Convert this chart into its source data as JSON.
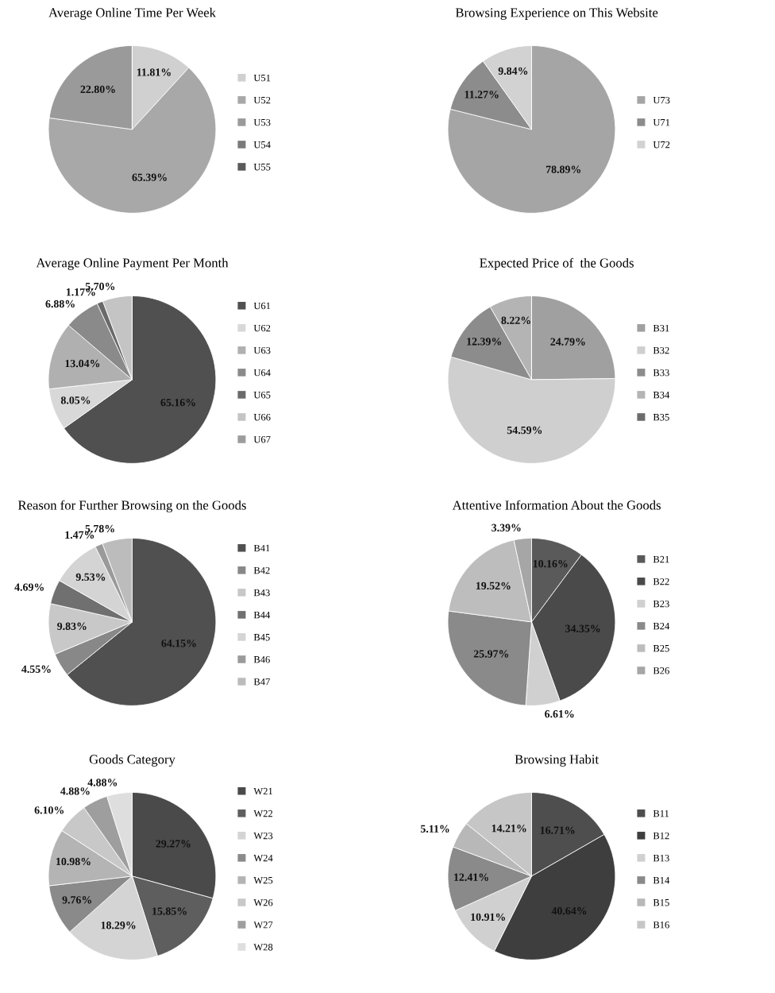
{
  "chart_data": [
    {
      "type": "pie",
      "title": "Average Online Time Per Week",
      "legend": "right",
      "categories": [
        "U51",
        "U52",
        "U53",
        "U54",
        "U55"
      ],
      "values": [
        11.81,
        65.39,
        22.8,
        0,
        0
      ],
      "value_labels": [
        "11.81%",
        "65.39%",
        "22.80%",
        null,
        null
      ],
      "colors": [
        "#d0d0d0",
        "#a8a8a8",
        "#9a9a9a",
        "#7a7a7a",
        "#5a5a5a"
      ]
    },
    {
      "type": "pie",
      "title": "Browsing Experience on This Website",
      "legend": "right",
      "categories": [
        "U73",
        "U71",
        "U72"
      ],
      "values": [
        78.89,
        11.27,
        9.84
      ],
      "value_labels": [
        "78.89%",
        "11.27%",
        "9.84%"
      ],
      "colors": [
        "#a5a5a5",
        "#8c8c8c",
        "#d2d2d2"
      ]
    },
    {
      "type": "pie",
      "title": "Average Online Payment Per Month",
      "legend": "right",
      "categories": [
        "U61",
        "U62",
        "U63",
        "U64",
        "U65",
        "U66",
        "U67"
      ],
      "values": [
        65.16,
        8.05,
        13.04,
        6.88,
        1.17,
        5.7,
        0
      ],
      "value_labels": [
        "65.16%",
        "8.05%",
        "13.04%",
        "6.88%",
        "1.17%",
        "5.70%",
        null
      ],
      "colors": [
        "#505050",
        "#d8d8d8",
        "#b0b0b0",
        "#8a8a8a",
        "#6a6a6a",
        "#c4c4c4",
        "#9c9c9c"
      ]
    },
    {
      "type": "pie",
      "title": "Expected Price of  the Goods",
      "legend": "right",
      "categories": [
        "B31",
        "B32",
        "B33",
        "B34",
        "B35"
      ],
      "values": [
        24.79,
        54.59,
        12.39,
        8.22,
        0
      ],
      "value_labels": [
        "24.79%",
        "54.59%",
        "12.39%",
        "8.22%",
        null
      ],
      "colors": [
        "#a0a0a0",
        "#cfcfcf",
        "#8c8c8c",
        "#b4b4b4",
        "#6c6c6c"
      ]
    },
    {
      "type": "pie",
      "title": "Reason for Further Browsing on the Goods",
      "legend": "right",
      "categories": [
        "B41",
        "B42",
        "B43",
        "B44",
        "B45",
        "B46",
        "B47"
      ],
      "values": [
        64.15,
        4.55,
        9.83,
        4.69,
        9.53,
        1.47,
        5.78
      ],
      "value_labels": [
        "64.15%",
        "4.55%",
        "9.83%",
        "4.69%",
        "9.53%",
        "1.47%",
        "5.78%"
      ],
      "colors": [
        "#505050",
        "#888888",
        "#c8c8c8",
        "#707070",
        "#d4d4d4",
        "#9a9a9a",
        "#bcbcbc"
      ]
    },
    {
      "type": "pie",
      "title": "Attentive Information About the Goods",
      "legend": "right",
      "categories": [
        "B21",
        "B22",
        "B23",
        "B24",
        "B25",
        "B26"
      ],
      "values": [
        10.16,
        34.35,
        6.61,
        25.97,
        19.52,
        3.39
      ],
      "value_labels": [
        "10.16%",
        "34.35%",
        "6.61%",
        "25.97%",
        "19.52%",
        "3.39%"
      ],
      "colors": [
        "#5a5a5a",
        "#4a4a4a",
        "#d0d0d0",
        "#8a8a8a",
        "#bdbdbd",
        "#a6a6a6"
      ]
    },
    {
      "type": "pie",
      "title": "Goods Category",
      "legend": "right",
      "categories": [
        "W21",
        "W22",
        "W23",
        "W24",
        "W25",
        "W26",
        "W27",
        "W28"
      ],
      "values": [
        29.27,
        15.85,
        18.29,
        9.76,
        10.98,
        6.1,
        4.88,
        4.88
      ],
      "value_labels": [
        "29.27%",
        "15.85%",
        "18.29%",
        "9.76%",
        "10.98%",
        "6.10%",
        "4.88%",
        "4.88%"
      ],
      "colors": [
        "#4a4a4a",
        "#5e5e5e",
        "#d4d4d4",
        "#8a8a8a",
        "#b4b4b4",
        "#c8c8c8",
        "#9e9e9e",
        "#dedede"
      ]
    },
    {
      "type": "pie",
      "title": "Browsing Habit",
      "legend": "right",
      "categories": [
        "B11",
        "B12",
        "B13",
        "B14",
        "B15",
        "B16"
      ],
      "values": [
        16.71,
        40.64,
        10.91,
        12.41,
        5.11,
        14.21
      ],
      "value_labels": [
        "16.71%",
        "40.64%",
        "10.91%",
        "12.41%",
        "5.11%",
        "14.21%"
      ],
      "colors": [
        "#4e4e4e",
        "#3e3e3e",
        "#d0d0d0",
        "#8a8a8a",
        "#b8b8b8",
        "#c6c6c6"
      ]
    }
  ]
}
